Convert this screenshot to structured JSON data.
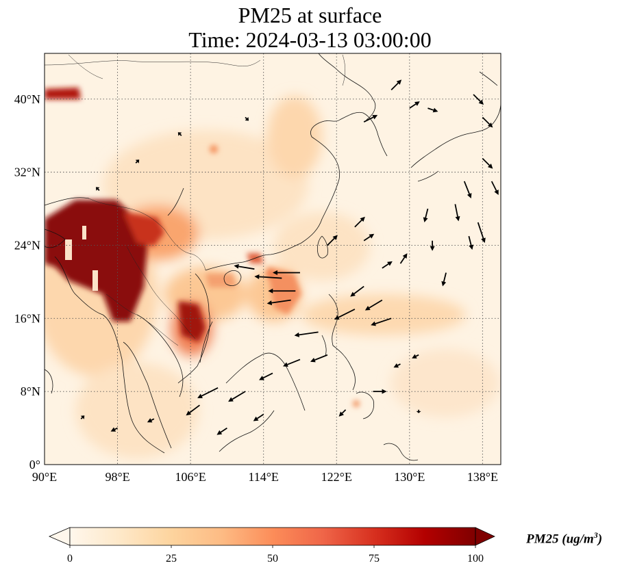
{
  "title_line1": "PM25 at surface",
  "title_line2": "Time: 2024-03-13 03:00:00",
  "map": {
    "projection": "PlateCarree",
    "lon_range": [
      90,
      140
    ],
    "lat_range": [
      0,
      45
    ],
    "lon_ticks": [
      {
        "value": 90,
        "label": "90°E"
      },
      {
        "value": 98,
        "label": "98°E"
      },
      {
        "value": 106,
        "label": "106°E"
      },
      {
        "value": 114,
        "label": "114°E"
      },
      {
        "value": 122,
        "label": "122°E"
      },
      {
        "value": 130,
        "label": "130°E"
      },
      {
        "value": 138,
        "label": "138°E"
      }
    ],
    "lat_ticks": [
      {
        "value": 0,
        "label": "0°"
      },
      {
        "value": 8,
        "label": "8°N"
      },
      {
        "value": 16,
        "label": "16°N"
      },
      {
        "value": 24,
        "label": "24°N"
      },
      {
        "value": 32,
        "label": "32°N"
      },
      {
        "value": 40,
        "label": "40°N"
      }
    ],
    "gridlines": "dotted",
    "field": "PM25",
    "high_concentration_regions": [
      {
        "name": "Myanmar-Yunnan-Laos",
        "lon": [
          90,
          102
        ],
        "lat": [
          16,
          29
        ],
        "level": 100
      },
      {
        "name": "Laos-Vietnam",
        "lon": [
          104,
          107
        ],
        "lat": [
          14,
          18
        ],
        "level": 70
      },
      {
        "name": "Xinjiang-Gansu",
        "lon": [
          90,
          93
        ],
        "lat": [
          40,
          41
        ],
        "level": 80
      },
      {
        "name": "South-China-Sea-plume",
        "lon": [
          112,
          118
        ],
        "lat": [
          16,
          22
        ],
        "level": 40
      }
    ],
    "wind_arrows": [
      {
        "lon": 116,
        "lat": 20.4,
        "u": -8,
        "v": 0.5
      },
      {
        "lon": 117.5,
        "lat": 19,
        "u": -8,
        "v": 0
      },
      {
        "lon": 117,
        "lat": 18,
        "u": -7,
        "v": -1
      },
      {
        "lon": 118,
        "lat": 21,
        "u": -8,
        "v": 0
      },
      {
        "lon": 113,
        "lat": 21.4,
        "u": -6,
        "v": 1
      },
      {
        "lon": 120,
        "lat": 14.5,
        "u": -7,
        "v": -1
      },
      {
        "lon": 124,
        "lat": 17,
        "u": -6,
        "v": -3
      },
      {
        "lon": 127,
        "lat": 18,
        "u": -5,
        "v": -3
      },
      {
        "lon": 128,
        "lat": 16,
        "u": -6,
        "v": -2
      },
      {
        "lon": 125,
        "lat": 19.5,
        "u": -4,
        "v": -3
      },
      {
        "lon": 109,
        "lat": 8.4,
        "u": -6,
        "v": -3
      },
      {
        "lon": 112,
        "lat": 8,
        "u": -5,
        "v": -3
      },
      {
        "lon": 115,
        "lat": 10,
        "u": -4,
        "v": -2
      },
      {
        "lon": 118,
        "lat": 11.5,
        "u": -5,
        "v": -2
      },
      {
        "lon": 121,
        "lat": 12,
        "u": -5,
        "v": -2
      },
      {
        "lon": 107,
        "lat": 6.5,
        "u": -4,
        "v": -3
      },
      {
        "lon": 110,
        "lat": 4,
        "u": -3,
        "v": -2
      },
      {
        "lon": 114,
        "lat": 5.5,
        "u": -3,
        "v": -2
      },
      {
        "lon": 136,
        "lat": 31,
        "u": 2,
        "v": -5
      },
      {
        "lon": 137.5,
        "lat": 26.5,
        "u": 2,
        "v": -6
      },
      {
        "lon": 135,
        "lat": 28.5,
        "u": 1,
        "v": -5
      },
      {
        "lon": 139,
        "lat": 31,
        "u": 2,
        "v": -4
      },
      {
        "lon": 132,
        "lat": 28,
        "u": -1,
        "v": -4
      },
      {
        "lon": 136.5,
        "lat": 25,
        "u": 1,
        "v": -4
      },
      {
        "lon": 134,
        "lat": 21,
        "u": -1,
        "v": -4
      },
      {
        "lon": 132.5,
        "lat": 24.5,
        "u": 0,
        "v": -3
      },
      {
        "lon": 124,
        "lat": 26,
        "u": 3,
        "v": 3
      },
      {
        "lon": 121,
        "lat": 24,
        "u": 3,
        "v": 3
      },
      {
        "lon": 125,
        "lat": 24.5,
        "u": 3,
        "v": 2
      },
      {
        "lon": 127,
        "lat": 21.5,
        "u": 3,
        "v": 2
      },
      {
        "lon": 129,
        "lat": 22,
        "u": 2,
        "v": 3
      },
      {
        "lon": 125,
        "lat": 37.5,
        "u": 4,
        "v": 2
      },
      {
        "lon": 128,
        "lat": 41,
        "u": 3,
        "v": 3
      },
      {
        "lon": 130,
        "lat": 39,
        "u": 3,
        "v": 2
      },
      {
        "lon": 132,
        "lat": 39,
        "u": 3,
        "v": -1
      },
      {
        "lon": 137,
        "lat": 40.5,
        "u": 3,
        "v": -3
      },
      {
        "lon": 138,
        "lat": 38,
        "u": 3,
        "v": -3
      },
      {
        "lon": 138,
        "lat": 33.5,
        "u": 3,
        "v": -3
      },
      {
        "lon": 112,
        "lat": 38,
        "u": 1,
        "v": -1
      },
      {
        "lon": 100,
        "lat": 33,
        "u": 1,
        "v": 1
      },
      {
        "lon": 96,
        "lat": 30,
        "u": -1,
        "v": 1
      },
      {
        "lon": 105,
        "lat": 36,
        "u": -1,
        "v": 1
      },
      {
        "lon": 102,
        "lat": 5,
        "u": -2,
        "v": -1
      },
      {
        "lon": 98,
        "lat": 4,
        "u": -2,
        "v": -1
      },
      {
        "lon": 94,
        "lat": 5,
        "u": 1,
        "v": 1
      },
      {
        "lon": 126,
        "lat": 8,
        "u": 4,
        "v": 0
      },
      {
        "lon": 123,
        "lat": 6,
        "u": -2,
        "v": -2
      },
      {
        "lon": 129,
        "lat": 11,
        "u": -2,
        "v": -1
      },
      {
        "lon": 131,
        "lat": 12,
        "u": -2,
        "v": -1
      },
      {
        "lon": 131,
        "lat": 6,
        "u": 0,
        "v": -1
      }
    ]
  },
  "colorbar": {
    "label": "PM25 (ug/m",
    "label_superscript": "3",
    "label_close": ")",
    "min": 0,
    "max": 100,
    "extend": "both",
    "cmap": "OrRd",
    "ticks": [
      {
        "value": 0,
        "label": "0"
      },
      {
        "value": 25,
        "label": "25"
      },
      {
        "value": 50,
        "label": "50"
      },
      {
        "value": 75,
        "label": "75"
      },
      {
        "value": 100,
        "label": "100"
      }
    ],
    "colors": [
      "#fff7ec",
      "#fee8c8",
      "#fdd49e",
      "#fdbb84",
      "#fc8d59",
      "#ef6548",
      "#d7301f",
      "#b30000",
      "#7f0000"
    ]
  }
}
